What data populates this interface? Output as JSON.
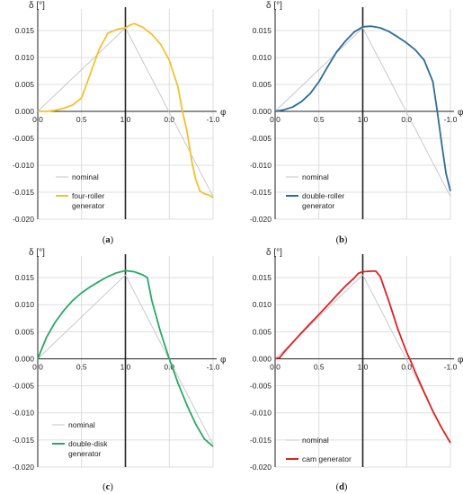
{
  "chart_data": [
    {
      "type": "line",
      "panel": "a",
      "caption": "(a)",
      "ylabel": "δ [°]",
      "xlabel": "φ",
      "x_ticks": [
        "0.0",
        "0.5",
        "1.0",
        "0.0",
        "-1.0"
      ],
      "y_ticks": [
        "0.015",
        "0.010",
        "0.005",
        "0.000",
        "-0.005",
        "-0.010",
        "-0.015",
        "-0.020"
      ],
      "ylim": [
        -0.02,
        0.019
      ],
      "color": "#f2c12e",
      "legend": [
        "nominal",
        "four-roller generator"
      ],
      "series": [
        {
          "name": "nominal",
          "x": [
            0,
            1,
            2
          ],
          "y": [
            0.0,
            0.0155,
            -0.0158
          ]
        },
        {
          "name": "four-roller generator",
          "x": [
            0,
            0.1,
            0.2,
            0.3,
            0.4,
            0.5,
            0.6,
            0.7,
            0.8,
            0.9,
            1.0,
            1.05,
            1.1,
            1.2,
            1.3,
            1.4,
            1.5,
            1.6,
            1.65,
            1.7,
            1.73,
            1.76,
            1.8,
            1.85,
            1.9,
            1.95,
            2.0
          ],
          "y": [
            0.0,
            0.0,
            0.0002,
            0.0006,
            0.0012,
            0.0025,
            0.007,
            0.0115,
            0.0145,
            0.0152,
            0.0155,
            0.016,
            0.0163,
            0.0156,
            0.0143,
            0.0125,
            0.0095,
            0.0045,
            0.0,
            -0.0035,
            -0.0065,
            -0.0095,
            -0.0125,
            -0.0148,
            -0.0153,
            -0.0155,
            -0.016
          ]
        }
      ]
    },
    {
      "type": "line",
      "panel": "b",
      "caption": "(b)",
      "ylabel": "δ [°]",
      "xlabel": "φ",
      "x_ticks": [
        "0.0",
        "0.5",
        "1.0",
        "0.0",
        "-1.0"
      ],
      "y_ticks": [
        "0.015",
        "0.010",
        "0.005",
        "0.000",
        "-0.005",
        "-0.010",
        "-0.015",
        "-0.020"
      ],
      "ylim": [
        -0.02,
        0.019
      ],
      "color": "#2d6e96",
      "legend": [
        "nominal",
        "double-roller generator"
      ],
      "series": [
        {
          "name": "nominal",
          "x": [
            0,
            1,
            2
          ],
          "y": [
            0.0,
            0.0155,
            -0.0158
          ]
        },
        {
          "name": "double-roller generator",
          "x": [
            0,
            0.1,
            0.2,
            0.3,
            0.4,
            0.5,
            0.6,
            0.7,
            0.8,
            0.9,
            1.0,
            1.1,
            1.2,
            1.3,
            1.4,
            1.5,
            1.6,
            1.7,
            1.8,
            1.85,
            1.9,
            1.95,
            2.0
          ],
          "y": [
            0.0,
            0.0003,
            0.0008,
            0.0018,
            0.0033,
            0.0055,
            0.0083,
            0.011,
            0.013,
            0.0147,
            0.0157,
            0.0158,
            0.0155,
            0.0148,
            0.0138,
            0.0127,
            0.0114,
            0.0095,
            0.0055,
            0.0,
            -0.006,
            -0.0115,
            -0.0148
          ]
        }
      ]
    },
    {
      "type": "line",
      "panel": "c",
      "caption": "(c)",
      "ylabel": "δ [°]",
      "xlabel": "φ",
      "x_ticks": [
        "0.0",
        "0.5",
        "1.0",
        "0.0",
        "-1.0"
      ],
      "y_ticks": [
        "0.015",
        "0.010",
        "0.005",
        "0.000",
        "-0.005",
        "-0.010",
        "-0.015",
        "-0.020"
      ],
      "ylim": [
        -0.02,
        0.019
      ],
      "color": "#2aa86a",
      "legend": [
        "nominal",
        "double-disk generator"
      ],
      "series": [
        {
          "name": "nominal",
          "x": [
            0,
            1,
            2
          ],
          "y": [
            0.0,
            0.0155,
            -0.0158
          ]
        },
        {
          "name": "double-disk generator",
          "x": [
            0,
            0.05,
            0.1,
            0.2,
            0.3,
            0.4,
            0.5,
            0.6,
            0.7,
            0.8,
            0.9,
            1.0,
            1.1,
            1.2,
            1.25,
            1.3,
            1.4,
            1.5,
            1.6,
            1.7,
            1.8,
            1.9,
            2.0
          ],
          "y": [
            0.0,
            0.002,
            0.004,
            0.0068,
            0.009,
            0.0108,
            0.0122,
            0.0133,
            0.0143,
            0.0152,
            0.0159,
            0.0163,
            0.0161,
            0.0155,
            0.015,
            0.0108,
            0.005,
            0.0,
            -0.0045,
            -0.0085,
            -0.012,
            -0.0148,
            -0.0162
          ]
        }
      ]
    },
    {
      "type": "line",
      "panel": "d",
      "caption": "(d)",
      "ylabel": "δ [°]",
      "xlabel": "φ",
      "x_ticks": [
        "0.0",
        "0.5",
        "1.0",
        "0.0",
        "-1.0"
      ],
      "y_ticks": [
        "0.015",
        "0.010",
        "0.005",
        "0.000",
        "-0.005",
        "-0.010",
        "-0.015",
        "-0.020"
      ],
      "ylim": [
        -0.02,
        0.019
      ],
      "color": "#dd2222",
      "legend": [
        "nominal",
        "cam generator"
      ],
      "series": [
        {
          "name": "nominal",
          "x": [
            0,
            1,
            2
          ],
          "y": [
            0.0,
            0.0155,
            -0.0158
          ]
        },
        {
          "name": "cam generator",
          "x": [
            0,
            0.05,
            0.1,
            0.2,
            0.3,
            0.4,
            0.5,
            0.6,
            0.7,
            0.8,
            0.9,
            0.95,
            1.0,
            1.1,
            1.15,
            1.2,
            1.3,
            1.4,
            1.5,
            1.55,
            1.6,
            1.7,
            1.8,
            1.9,
            2.0
          ],
          "y": [
            0.0,
            0.0002,
            0.0012,
            0.003,
            0.0048,
            0.0065,
            0.0082,
            0.0099,
            0.0117,
            0.0134,
            0.0149,
            0.0158,
            0.0161,
            0.0162,
            0.0162,
            0.0152,
            0.0105,
            0.0055,
            0.0012,
            -0.0005,
            -0.0025,
            -0.0062,
            -0.0097,
            -0.0128,
            -0.0155
          ]
        }
      ]
    }
  ]
}
